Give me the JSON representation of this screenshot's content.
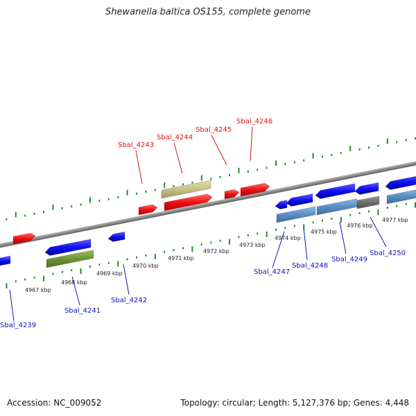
{
  "title": "Shewanella baltica OS155, complete genome",
  "footer": {
    "accession": "Accession: NC_009052",
    "stats": "Topology: circular; Length: 5,127,376 bp; Genes: 4,448"
  },
  "colors": {
    "backbone": "#8c8c8c",
    "forward_label": "#dd1111",
    "reverse_label": "#1111bb",
    "tick": "#2a8a2a"
  },
  "scale_labels": [
    "4967 kbp",
    "4968 kbp",
    "4969 kbp",
    "4970 kbp",
    "4971 kbp",
    "4972 kbp",
    "4973 kbp",
    "4974 kbp",
    "4975 kbp",
    "4976 kbp",
    "4977 kbp"
  ],
  "top_labels": [
    "Sbal_4243",
    "Sbal_4244",
    "Sbal_4245",
    "Sbal_4246"
  ],
  "bottom_labels": [
    "Sbal_4239",
    "Sbal_4241",
    "Sbal_4242",
    "Sbal_4247",
    "Sbal_4248",
    "Sbal_4249",
    "Sbal_4250"
  ]
}
